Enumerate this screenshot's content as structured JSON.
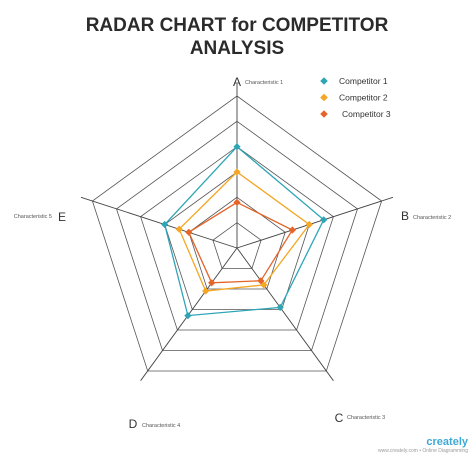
{
  "chart_data": {
    "type": "radar",
    "title_line1": "RADAR CHART for COMPETITOR",
    "title_line2": "ANALYSIS",
    "axes": [
      {
        "letter": "A",
        "label": "Characteristic 1"
      },
      {
        "letter": "B",
        "label": "Characteristic 2"
      },
      {
        "letter": "C",
        "label": "Characteristic 3"
      },
      {
        "letter": "D",
        "label": "Characteristic 4"
      },
      {
        "letter": "E",
        "label": "Characteristic 5"
      }
    ],
    "levels": 6,
    "rmax": 6,
    "grid": true,
    "legend_position": "top-right",
    "series": [
      {
        "name": "Competitor 1",
        "color": "#2ea5b5",
        "values": [
          4.0,
          3.6,
          2.9,
          3.3,
          3.0
        ]
      },
      {
        "name": "Competitor 2",
        "color": "#f5a623",
        "values": [
          3.0,
          3.0,
          1.8,
          2.1,
          2.4
        ]
      },
      {
        "name": "Competitor 3",
        "color": "#e4642a",
        "values": [
          1.8,
          2.3,
          1.6,
          1.7,
          2.0
        ]
      }
    ]
  },
  "watermark": {
    "brand": "creately",
    "sub": "www.creately.com • Online Diagramming"
  }
}
